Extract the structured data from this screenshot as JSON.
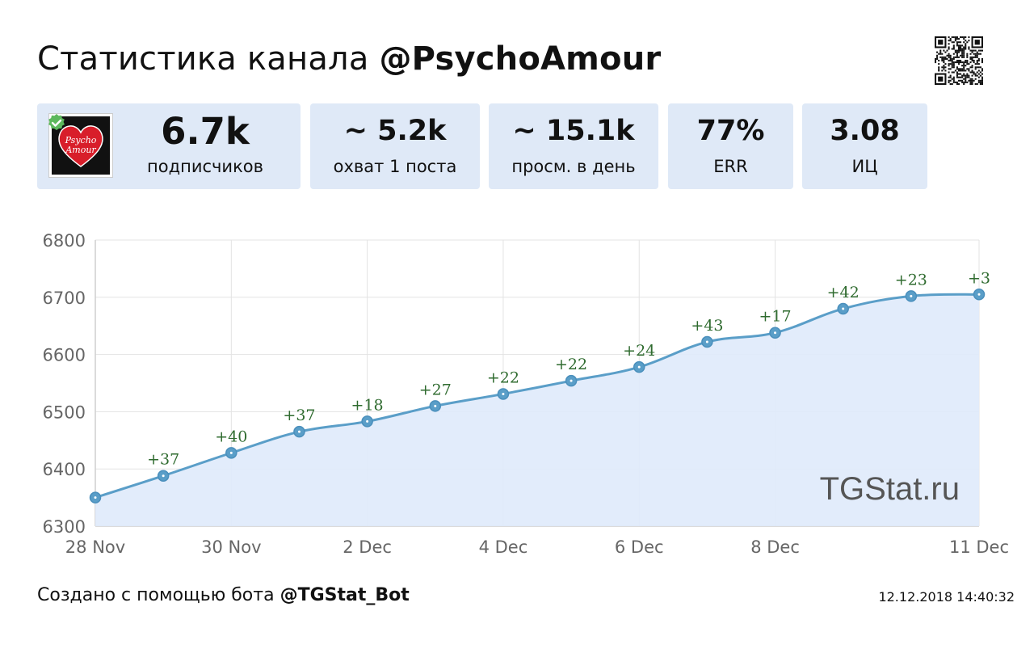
{
  "header": {
    "title_prefix": "Статистика канала ",
    "title_handle": "@PsychoAmour"
  },
  "stats": [
    {
      "value": "6.7k",
      "label": "подписчиков"
    },
    {
      "value": "~ 5.2k",
      "label": "охват 1 поста"
    },
    {
      "value": "~ 15.1k",
      "label": "просм. в день"
    },
    {
      "value": "77%",
      "label": "ERR"
    },
    {
      "value": "3.08",
      "label": "ИЦ"
    }
  ],
  "avatar": {
    "text_line1": "Psycho",
    "text_line2": "Amour"
  },
  "footer": {
    "prefix": "Создано с помощью бота ",
    "bot": "@TGStat_Bot",
    "timestamp": "12.12.2018 14:40:32"
  },
  "colors": {
    "card_bg": "#dfe9f7",
    "line": "#5a9ec8",
    "area": "#dfeafb",
    "label_green": "#2f6b2f"
  },
  "chart_data": {
    "type": "area",
    "x": [
      "2018-11-28",
      "2018-11-29",
      "2018-11-30",
      "2018-12-01",
      "2018-12-02",
      "2018-12-03",
      "2018-12-04",
      "2018-12-05",
      "2018-12-06",
      "2018-12-07",
      "2018-12-08",
      "2018-12-09",
      "2018-12-10",
      "2018-12-11"
    ],
    "series": [
      {
        "values": [
          6350,
          6388,
          6428,
          6465,
          6483,
          6510,
          6531,
          6554,
          6578,
          6622,
          6638,
          6680,
          6702,
          6705
        ],
        "data_labels": [
          "",
          "+37",
          "+40",
          "+37",
          "+18",
          "+27",
          "+22",
          "+22",
          "+24",
          "+43",
          "+17",
          "+42",
          "+23",
          "+3"
        ]
      }
    ],
    "x_tick_labels": [
      {
        "index": 0,
        "label": "28 Nov"
      },
      {
        "index": 2,
        "label": "30 Nov"
      },
      {
        "index": 4,
        "label": "2 Dec"
      },
      {
        "index": 6,
        "label": "4 Dec"
      },
      {
        "index": 8,
        "label": "6 Dec"
      },
      {
        "index": 10,
        "label": "8 Dec"
      },
      {
        "index": 13,
        "label": "11 Dec"
      }
    ],
    "y_ticks": [
      6300,
      6400,
      6500,
      6600,
      6700,
      6800
    ],
    "ylim": [
      6300,
      6800
    ],
    "grid": true,
    "watermark": "TGStat.ru"
  }
}
